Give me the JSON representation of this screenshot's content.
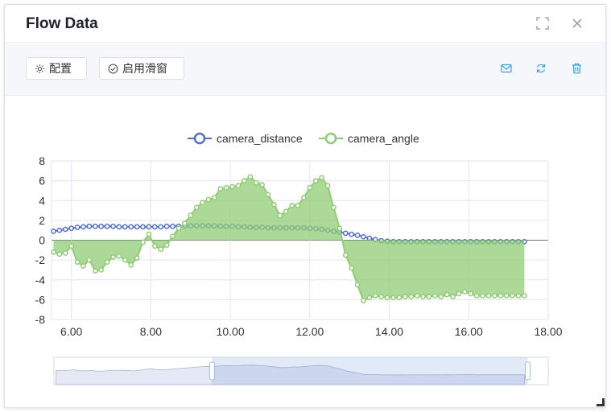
{
  "dialog": {
    "title": "Flow Data",
    "fullscreen_icon": "fullscreen-icon",
    "close_icon": "close-icon"
  },
  "toolbar": {
    "config_label": "配置",
    "config_icon": "gear-icon",
    "slide_window_label": "启用滑窗",
    "slide_window_icon": "check-circle-icon",
    "mail_icon": "mail-icon",
    "refresh_icon": "refresh-icon",
    "delete_icon": "trash-icon",
    "accent_color": "#3ba1d4"
  },
  "chart_data": {
    "type": "line",
    "legend_position": "top-center",
    "grid": true,
    "xlim": [
      5.5,
      18.0
    ],
    "ylim": [
      -8,
      8
    ],
    "x_ticks": [
      "6.00",
      "8.00",
      "10.00",
      "12.00",
      "14.00",
      "16.00",
      "18.00"
    ],
    "y_ticks": [
      "8",
      "6",
      "4",
      "2",
      "0",
      "-2",
      "-4",
      "-6",
      "-8"
    ],
    "x": [
      5.55,
      5.7,
      5.85,
      6.0,
      6.15,
      6.3,
      6.45,
      6.6,
      6.75,
      6.9,
      7.05,
      7.2,
      7.35,
      7.5,
      7.65,
      7.8,
      7.95,
      8.1,
      8.25,
      8.4,
      8.55,
      8.7,
      8.85,
      9.0,
      9.15,
      9.3,
      9.45,
      9.6,
      9.75,
      9.9,
      10.05,
      10.2,
      10.35,
      10.5,
      10.65,
      10.8,
      10.95,
      11.1,
      11.25,
      11.4,
      11.55,
      11.7,
      11.85,
      12.0,
      12.15,
      12.3,
      12.45,
      12.6,
      12.75,
      12.9,
      13.05,
      13.2,
      13.35,
      13.5,
      13.65,
      13.8,
      13.95,
      14.1,
      14.25,
      14.4,
      14.55,
      14.7,
      14.85,
      15.0,
      15.15,
      15.3,
      15.45,
      15.6,
      15.75,
      15.9,
      16.05,
      16.2,
      16.35,
      16.5,
      16.65,
      16.8,
      16.95,
      17.1,
      17.25,
      17.4
    ],
    "series": [
      {
        "name": "camera_distance",
        "color": "#5470c6",
        "values": [
          0.9,
          1.0,
          1.1,
          1.2,
          1.3,
          1.35,
          1.4,
          1.4,
          1.4,
          1.4,
          1.4,
          1.35,
          1.35,
          1.35,
          1.35,
          1.35,
          1.35,
          1.35,
          1.35,
          1.4,
          1.4,
          1.4,
          1.45,
          1.45,
          1.45,
          1.45,
          1.45,
          1.45,
          1.4,
          1.4,
          1.4,
          1.35,
          1.35,
          1.3,
          1.3,
          1.3,
          1.25,
          1.25,
          1.25,
          1.25,
          1.25,
          1.25,
          1.25,
          1.2,
          1.15,
          1.1,
          1.0,
          0.9,
          0.8,
          0.7,
          0.6,
          0.5,
          0.35,
          0.2,
          0.05,
          -0.05,
          -0.1,
          -0.15,
          -0.15,
          -0.15,
          -0.15,
          -0.15,
          -0.15,
          -0.15,
          -0.15,
          -0.15,
          -0.15,
          -0.15,
          -0.15,
          -0.15,
          -0.15,
          -0.15,
          -0.15,
          -0.15,
          -0.15,
          -0.15,
          -0.15,
          -0.15,
          -0.15,
          -0.15
        ]
      },
      {
        "name": "camera_angle",
        "color": "#91cc75",
        "values": [
          -1.2,
          -1.4,
          -1.3,
          -0.6,
          -2.2,
          -2.6,
          -2.0,
          -3.1,
          -3.0,
          -2.2,
          -1.7,
          -1.6,
          -2.0,
          -2.5,
          -1.8,
          -0.2,
          0.6,
          -0.6,
          -0.9,
          -0.5,
          0.4,
          1.2,
          1.7,
          2.5,
          3.3,
          3.8,
          4.1,
          4.3,
          5.2,
          5.3,
          5.4,
          5.5,
          6.0,
          6.4,
          5.8,
          5.6,
          4.6,
          3.6,
          2.5,
          2.9,
          3.5,
          3.5,
          4.3,
          5.3,
          6.0,
          6.3,
          5.5,
          3.3,
          1.2,
          -1.5,
          -2.8,
          -4.5,
          -6.1,
          -5.8,
          -5.6,
          -5.7,
          -5.8,
          -5.8,
          -5.8,
          -5.7,
          -5.7,
          -5.6,
          -5.7,
          -5.7,
          -5.6,
          -5.7,
          -5.5,
          -5.7,
          -5.4,
          -5.2,
          -5.4,
          -5.6,
          -5.6,
          -5.6,
          -5.6,
          -5.6,
          -5.6,
          -5.6,
          -5.6,
          -5.6
        ]
      }
    ],
    "datazoom": {
      "window_range": [
        9.5,
        17.4
      ]
    }
  }
}
